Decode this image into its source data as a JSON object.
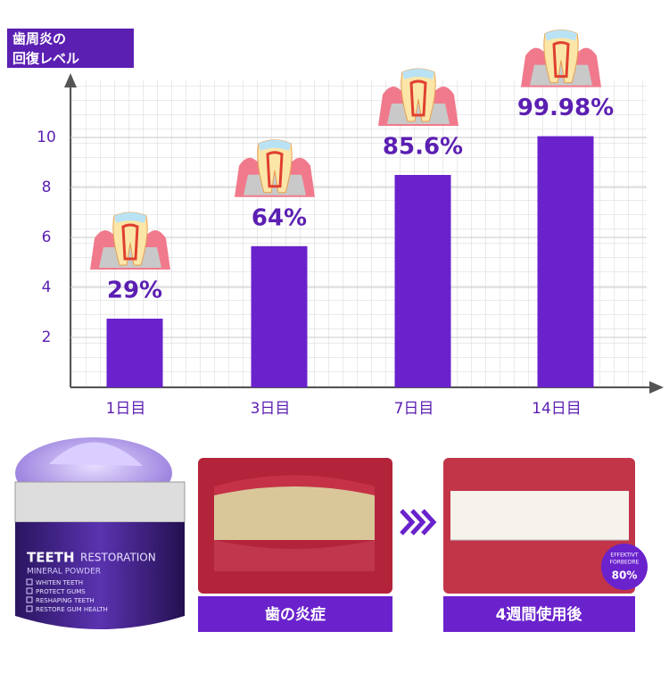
{
  "chart_data": {
    "type": "bar",
    "y_label_lines": [
      "歯周炎の",
      "回復レベル"
    ],
    "categories": [
      "1日目",
      "3日目",
      "7日目",
      "14日目"
    ],
    "values": [
      2.75,
      5.65,
      8.5,
      10.05
    ],
    "annotations": [
      "29%",
      "64%",
      "85.6%",
      "99.98%"
    ],
    "color": "#6a22cc",
    "ylim": [
      0,
      12
    ],
    "yticks": [
      2,
      4,
      6,
      8,
      10
    ],
    "grid": true
  },
  "panel": {
    "product_title_a": "TEETH",
    "product_title_b": "RESTORATION",
    "product_subtitle": "MINERAL POWDER",
    "product_points": [
      "WHITEN TEETH",
      "PROTECT GUMS",
      "RESHAPING TEETH",
      "RESTORE GUM HEALTH"
    ],
    "before_caption": "歯の炎症",
    "after_caption": "4週間使用後",
    "badge_lines": [
      "EFFEKTIVT",
      "FORBEDRE"
    ],
    "badge_value": "80%"
  }
}
